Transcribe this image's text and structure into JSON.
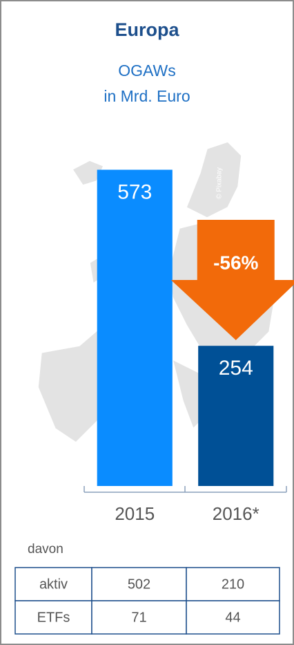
{
  "chart_data": {
    "type": "bar",
    "title": "Europa",
    "subtitle": [
      "OGAWs",
      "in Mrd. Euro"
    ],
    "categories": [
      "2015",
      "2016*"
    ],
    "values": [
      573,
      254
    ],
    "colors": [
      "#0a8cff",
      "#005096"
    ],
    "ylim": [
      0,
      600
    ],
    "annotation": "-56%",
    "annotation_color": "#f26a0a",
    "credit": "© Pixabay"
  },
  "table": {
    "label": "davon",
    "rows": [
      [
        "aktiv",
        "502",
        "210"
      ],
      [
        "ETFs",
        "71",
        "44"
      ]
    ]
  }
}
